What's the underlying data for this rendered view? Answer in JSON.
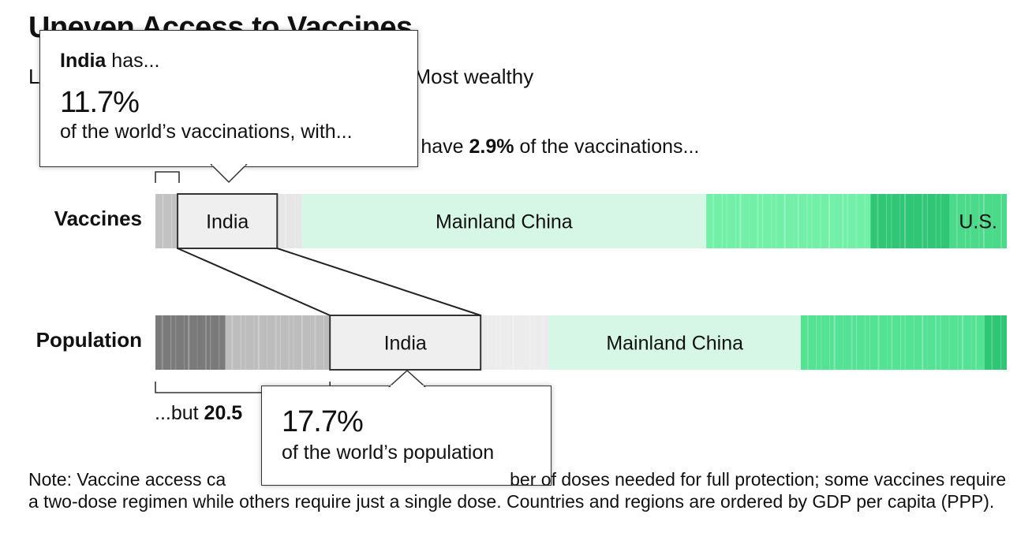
{
  "title": "Uneven Access to Vaccines",
  "subtitle_prefix": "L",
  "subtitle_suffix": "Most wealthy",
  "annotation_top": {
    "prefix": "es have ",
    "value": "2.9%",
    "suffix": " of the vaccinations..."
  },
  "annotation_bottom": {
    "prefix": "...but ",
    "value": "20.5"
  },
  "tooltip_top": {
    "country": "India",
    "country_suffix": " has...",
    "percent": "11.7%",
    "description": "of the world’s vaccinations, with..."
  },
  "tooltip_bottom": {
    "percent": "17.7%",
    "description": "of the world’s population"
  },
  "note": "Note: Vaccine access ca                                       ber of doses needed for full protection; some vaccines require a two-dose regimen while others require just a single dose. Countries and regions are ordered by GDP per capita (PPP).",
  "note_parts": {
    "line1_left": "Note: Vaccine access ca",
    "line1_right": "ber of doses needed for full protection; some",
    "rest": "vaccines require a two-dose regimen while others require just a single dose. Countries and regions are ordered by GDP per capita (PPP)."
  },
  "colors": {
    "low_income_gray": "#c8c8c8",
    "dark_gray": "#6a6a6a",
    "highlight_fill": "#efefef",
    "highlight_stroke": "#333333",
    "mint": "#d6f7e6",
    "green": "#6ff0a6",
    "dark_green": "#2fc675"
  },
  "chart_data": {
    "type": "bar",
    "orientation": "horizontal",
    "stacked": "100%",
    "ordering": "GDP per capita (PPP)",
    "rows": [
      {
        "name": "Vaccines",
        "segments": [
          {
            "label": "",
            "share": 2.6,
            "color": "#c2c2c2"
          },
          {
            "label": "India",
            "share": 11.7,
            "color": "#efefef",
            "highlight": true
          },
          {
            "label": "",
            "share": 2.9,
            "color": "#e6e6e6"
          },
          {
            "label": "Mainland China",
            "share": 47.5,
            "color": "#d6f7e6"
          },
          {
            "label": "",
            "share": 19.3,
            "color": "#72f0a8"
          },
          {
            "label": "",
            "share": 9.3,
            "color": "#2fc675"
          },
          {
            "label": "U.S.",
            "share": 6.7,
            "color": "#4bd98a"
          }
        ]
      },
      {
        "name": "Population",
        "segments": [
          {
            "label": "",
            "share": 8.2,
            "color": "#7a7a7a"
          },
          {
            "label": "",
            "share": 12.3,
            "color": "#bdbdbd"
          },
          {
            "label": "India",
            "share": 17.7,
            "color": "#efefef",
            "highlight": true
          },
          {
            "label": "",
            "share": 8.0,
            "color": "#ececec"
          },
          {
            "label": "Mainland China",
            "share": 29.6,
            "color": "#d6f7e6"
          },
          {
            "label": "",
            "share": 21.6,
            "color": "#54e294"
          },
          {
            "label": "",
            "share": 2.6,
            "color": "#2fc675"
          }
        ]
      }
    ]
  }
}
